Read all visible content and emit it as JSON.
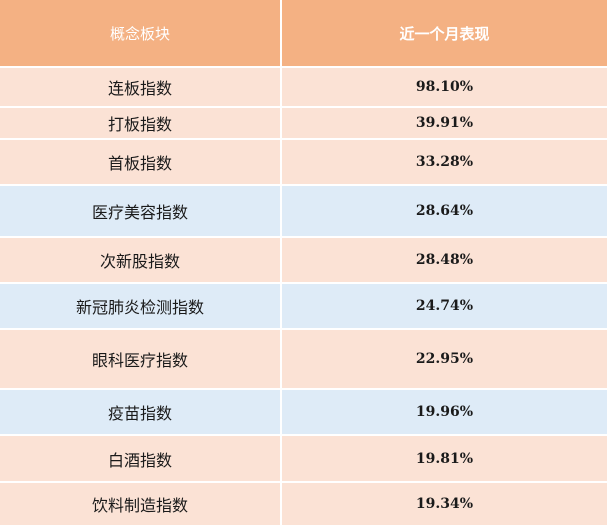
{
  "table": {
    "header": [
      "概念板块",
      "近一个月表现"
    ],
    "rows": [
      [
        "连板指数",
        "98.10%"
      ],
      [
        "打板指数",
        "39.91%"
      ],
      [
        "首板指数",
        "33.28%"
      ],
      [
        "医疗美容指数",
        "28.64%"
      ],
      [
        "次新股指数",
        "28.48%"
      ],
      [
        "新冠肺炎检测指数",
        "24.74%"
      ],
      [
        "眼科医疗指数",
        "22.95%"
      ],
      [
        "疫苗指数",
        "19.96%"
      ],
      [
        "白酒指数",
        "19.81%"
      ],
      [
        "饮料制造指数",
        "19.34%"
      ]
    ]
  }
}
